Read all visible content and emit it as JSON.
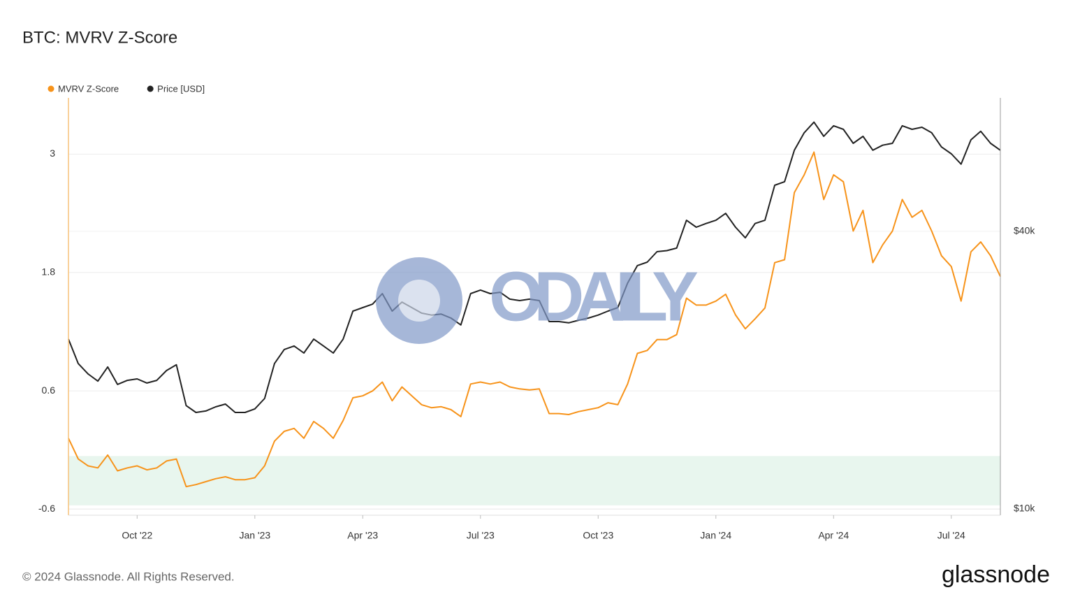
{
  "chart_data": {
    "type": "line",
    "title": "BTC: MVRV Z-Score",
    "categories": [
      null,
      null,
      null,
      null,
      null,
      null,
      null,
      "Oct '22",
      null,
      null,
      null,
      null,
      null,
      null,
      null,
      null,
      null,
      null,
      null,
      "Jan '23",
      null,
      null,
      null,
      null,
      null,
      null,
      null,
      null,
      null,
      null,
      "Apr '23",
      null,
      null,
      null,
      null,
      null,
      null,
      null,
      null,
      null,
      null,
      null,
      "Jul '23",
      null,
      null,
      null,
      null,
      null,
      null,
      null,
      null,
      null,
      null,
      null,
      "Oct '23",
      null,
      null,
      null,
      null,
      null,
      null,
      null,
      null,
      null,
      null,
      null,
      "Jan '24",
      null,
      null,
      null,
      null,
      null,
      null,
      null,
      null,
      null,
      null,
      null,
      "Apr '24",
      null,
      null,
      null,
      null,
      null,
      null,
      null,
      null,
      null,
      null,
      null,
      "Jul '24",
      null,
      null,
      null,
      null,
      null
    ],
    "series": [
      {
        "name": "MVRV Z-Score",
        "color": "#f7931a",
        "axis": "y",
        "values": [
          0.12,
          -0.09,
          -0.16,
          -0.18,
          -0.05,
          -0.21,
          -0.18,
          -0.16,
          -0.2,
          -0.18,
          -0.11,
          -0.09,
          -0.37,
          -0.35,
          -0.32,
          -0.29,
          -0.27,
          -0.3,
          -0.3,
          -0.28,
          -0.16,
          0.09,
          0.19,
          0.22,
          0.12,
          0.29,
          0.22,
          0.12,
          0.3,
          0.53,
          0.55,
          0.6,
          0.69,
          0.5,
          0.64,
          0.55,
          0.46,
          0.43,
          0.44,
          0.41,
          0.34,
          0.67,
          0.69,
          0.67,
          0.69,
          0.64,
          0.62,
          0.61,
          0.62,
          0.37,
          0.37,
          0.36,
          0.39,
          0.41,
          0.43,
          0.48,
          0.46,
          0.67,
          0.98,
          1.01,
          1.12,
          1.12,
          1.17,
          1.54,
          1.47,
          1.47,
          1.51,
          1.58,
          1.37,
          1.23,
          1.33,
          1.44,
          1.9,
          1.93,
          2.61,
          2.79,
          3.02,
          2.54,
          2.79,
          2.72,
          2.22,
          2.43,
          1.9,
          2.08,
          2.22,
          2.54,
          2.36,
          2.43,
          2.22,
          1.97,
          1.86,
          1.51,
          2.01,
          2.11,
          1.97,
          1.76
        ]
      },
      {
        "name": "Price [USD]",
        "color": "#222222",
        "axis": "y2",
        "values": [
          23350,
          20660,
          19620,
          18930,
          20320,
          18620,
          19000,
          19140,
          18750,
          19000,
          19960,
          20540,
          16750,
          16190,
          16310,
          16650,
          16880,
          16190,
          16190,
          16480,
          17360,
          20660,
          22170,
          22560,
          21780,
          23350,
          22560,
          21780,
          23350,
          26860,
          27330,
          27800,
          29310,
          26860,
          28100,
          27330,
          26590,
          26330,
          26460,
          25940,
          25060,
          29310,
          29830,
          29310,
          29500,
          28510,
          28300,
          28510,
          28300,
          25490,
          25490,
          25330,
          25660,
          25940,
          26330,
          26860,
          27330,
          30880,
          33710,
          34290,
          36140,
          36330,
          36790,
          42270,
          40840,
          41590,
          42270,
          43760,
          40840,
          38730,
          41590,
          42270,
          50350,
          51260,
          59970,
          65440,
          69020,
          64300,
          67760,
          66570,
          62090,
          64300,
          59970,
          61510,
          62090,
          67760,
          66570,
          67270,
          65440,
          60970,
          58910,
          55950,
          63180,
          65930,
          62090,
          59970
        ]
      }
    ],
    "ylim": [
      -0.66,
      3.57
    ],
    "yticks": [
      -0.6,
      0.6,
      1.8,
      3
    ],
    "y2lim": [
      9690,
      77900
    ],
    "y2scale": "log",
    "y2ticks": [
      {
        "value": 10000,
        "label": "$10k"
      },
      {
        "value": 40000,
        "label": "$40k"
      }
    ],
    "zone": {
      "from": -0.56,
      "to": -0.06,
      "color": "#e8f6ee"
    },
    "grid": true,
    "legend": "top-left"
  },
  "watermark": "ODAILY",
  "copyright": "© 2024 Glassnode. All Rights Reserved.",
  "brand": "glassnode"
}
